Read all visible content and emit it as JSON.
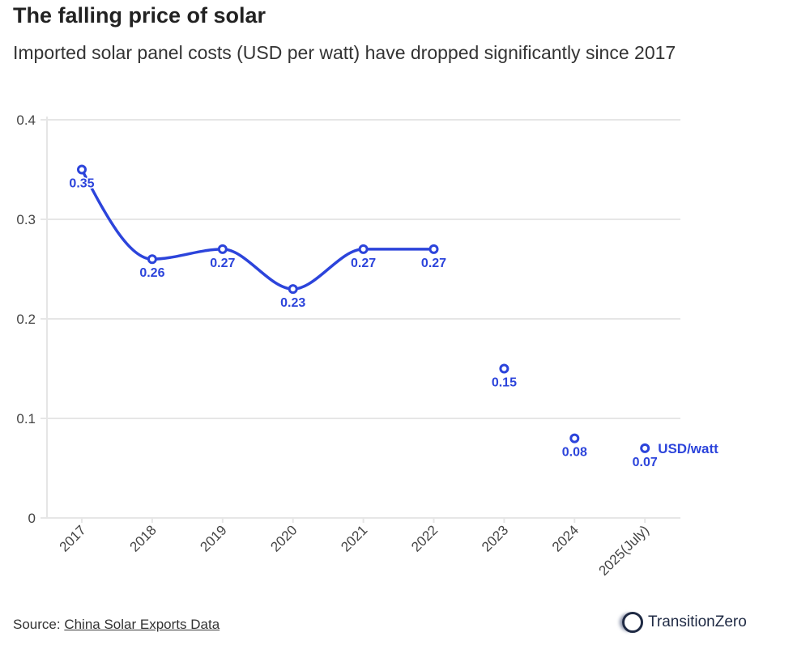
{
  "title": "The falling price of solar",
  "subtitle": "Imported solar panel costs (USD per watt) have dropped significantly since 2017",
  "footer": {
    "source_label": "Source:",
    "source_link": "China Solar Exports Data",
    "logo_text": "TransitionZero"
  },
  "colors": {
    "line": "#2c44db",
    "grid": "#e6e6e6"
  },
  "chart_data": {
    "type": "line",
    "categories": [
      "2017",
      "2018",
      "2019",
      "2020",
      "2021",
      "2022",
      "2023",
      "2024",
      "2025(July)"
    ],
    "series": [
      {
        "name": "USD/watt",
        "values": [
          0.35,
          0.26,
          0.27,
          0.23,
          0.27,
          0.27,
          0.15,
          0.08,
          0.07
        ]
      }
    ],
    "data_labels": [
      "0.35",
      "0.26",
      "0.27",
      "0.23",
      "0.27",
      "0.27",
      "0.15",
      "0.08",
      "0.07"
    ],
    "ylim": [
      0,
      0.4
    ],
    "yticks": [
      "0",
      "0.1",
      "0.2",
      "0.3",
      "0.4"
    ],
    "grid": true,
    "curve": "smooth"
  }
}
